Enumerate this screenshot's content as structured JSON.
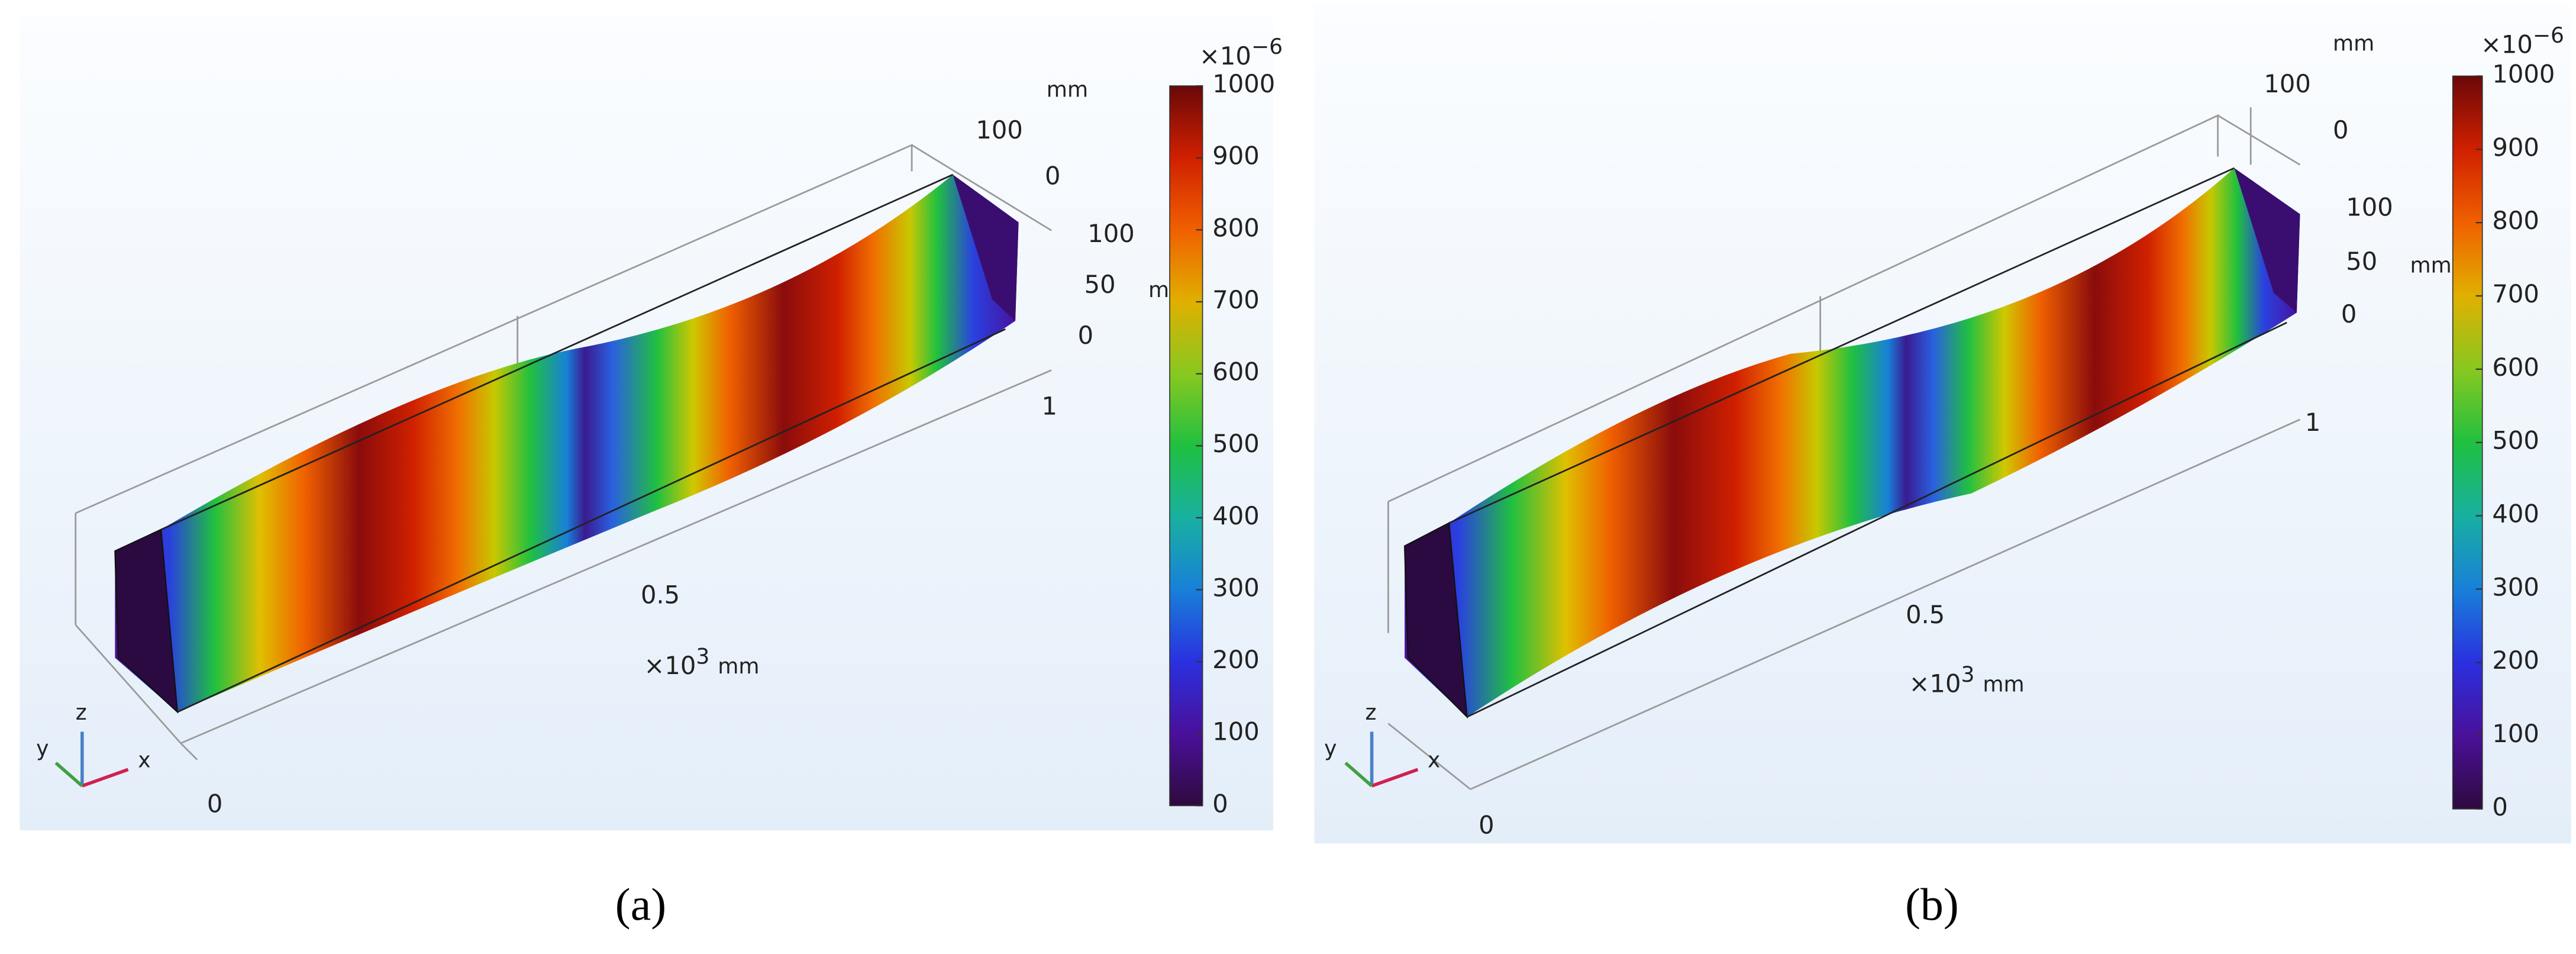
{
  "panels": [
    {
      "caption": "(a)",
      "colorbar": {
        "scale_prefix": "×10",
        "scale_exponent": "−6",
        "range": [
          0,
          1000
        ],
        "ticks": [
          0,
          100,
          200,
          300,
          400,
          500,
          600,
          700,
          800,
          900,
          1000
        ]
      },
      "axes": {
        "y_unit": "mm",
        "y_ticks": [
          "100",
          "0"
        ],
        "z_ticks": [
          "100",
          "50",
          "0"
        ],
        "z_unit": "mm",
        "x_ticks": [
          "0",
          "0.5",
          "1"
        ],
        "x_prefix": "×10",
        "x_exponent": "3",
        "x_unit": "mm"
      },
      "triad": {
        "x": "x",
        "y": "y",
        "z": "z"
      }
    },
    {
      "caption": "(b)",
      "colorbar": {
        "scale_prefix": "×10",
        "scale_exponent": "−6",
        "range": [
          0,
          1000
        ],
        "ticks": [
          0,
          100,
          200,
          300,
          400,
          500,
          600,
          700,
          800,
          900,
          1000
        ]
      },
      "axes": {
        "y_unit": "mm",
        "y_ticks": [
          "100",
          "0"
        ],
        "z_ticks": [
          "100",
          "50",
          "0"
        ],
        "z_unit": "mm",
        "x_ticks": [
          "0",
          "0.5",
          "1"
        ],
        "x_prefix": "×10",
        "x_exponent": "3",
        "x_unit": "mm"
      },
      "triad": {
        "x": "x",
        "y": "y",
        "z": "z"
      }
    }
  ]
}
